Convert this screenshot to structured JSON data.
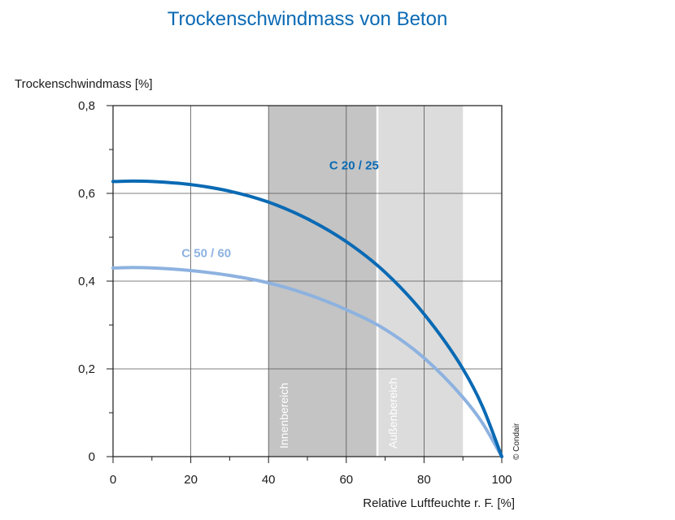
{
  "chart_data": {
    "type": "line",
    "title": "Trockenschwindmass von Beton",
    "xlabel": "Relative Luftfeuchte r. F. [%]",
    "ylabel": "Trockenschwindmass [%]",
    "xlim": [
      0,
      100
    ],
    "ylim": [
      0,
      0.8
    ],
    "xticks": [
      0,
      20,
      40,
      60,
      80,
      100
    ],
    "xtick_labels": [
      "0",
      "20",
      "40",
      "60",
      "80",
      "100"
    ],
    "yticks": [
      0,
      0.2,
      0.4,
      0.6,
      0.8
    ],
    "ytick_labels": [
      "0",
      "0,2",
      "0,4",
      "0,6",
      "0,8"
    ],
    "grid": true,
    "zones": [
      {
        "label": "Innenbereich",
        "x_start": 40,
        "x_end": 68,
        "color": "#c4c4c4"
      },
      {
        "label": "Außenbereich",
        "x_start": 68,
        "x_end": 90,
        "color": "#dcdcdc"
      }
    ],
    "series": [
      {
        "name": "C 20 / 25",
        "color": "#0a6ab4",
        "x": [
          0,
          5,
          10,
          20,
          30,
          40,
          50,
          60,
          70,
          80,
          90,
          95,
          100
        ],
        "y": [
          0.627,
          0.628,
          0.627,
          0.62,
          0.605,
          0.58,
          0.542,
          0.49,
          0.42,
          0.325,
          0.2,
          0.115,
          0
        ]
      },
      {
        "name": "C 50 / 60",
        "color": "#8db2e0",
        "x": [
          0,
          5,
          10,
          20,
          30,
          40,
          50,
          60,
          70,
          80,
          90,
          95,
          100
        ],
        "y": [
          0.43,
          0.431,
          0.43,
          0.424,
          0.413,
          0.396,
          0.37,
          0.335,
          0.29,
          0.225,
          0.135,
          0.077,
          0
        ]
      }
    ],
    "credit": "© Condair"
  }
}
